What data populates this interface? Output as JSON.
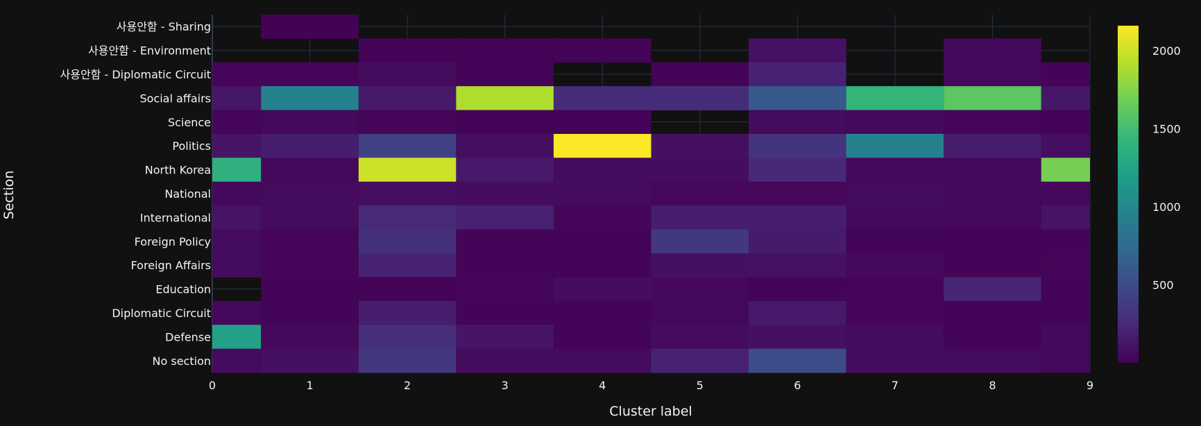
{
  "chart_data": {
    "type": "heatmap",
    "title": "",
    "xlabel": "Cluster label",
    "ylabel": "Section",
    "x_categories": [
      0,
      1,
      2,
      3,
      4,
      5,
      6,
      7,
      8,
      9
    ],
    "x_tick_labels": [
      "0",
      "1",
      "2",
      "3",
      "4",
      "5",
      "6",
      "7",
      "8",
      "9"
    ],
    "x_range": [
      0,
      9
    ],
    "y_categories": [
      "사용안함 - Sharing",
      "사용안함 - Environment",
      "사용안함 - Diplomatic Circuit",
      "Social affairs",
      "Science",
      "Politics",
      "North Korea",
      "National",
      "International",
      "Foreign Policy",
      "Foreign  Affairs",
      "Education",
      "Diplomatic Circuit",
      "Defense",
      "No section"
    ],
    "z": [
      [
        null,
        5,
        null,
        null,
        null,
        null,
        null,
        null,
        null,
        null
      ],
      [
        null,
        null,
        20,
        20,
        20,
        null,
        100,
        null,
        50,
        null
      ],
      [
        30,
        30,
        60,
        20,
        null,
        20,
        200,
        null,
        40,
        20
      ],
      [
        130,
        950,
        150,
        1900,
        270,
        270,
        600,
        1420,
        1600,
        130
      ],
      [
        30,
        40,
        30,
        20,
        20,
        null,
        60,
        50,
        30,
        20
      ],
      [
        120,
        170,
        420,
        80,
        2150,
        90,
        330,
        950,
        170,
        80
      ],
      [
        1370,
        50,
        2000,
        150,
        60,
        70,
        250,
        50,
        50,
        1700
      ],
      [
        50,
        60,
        80,
        70,
        60,
        40,
        40,
        60,
        50,
        40
      ],
      [
        110,
        60,
        260,
        200,
        30,
        170,
        180,
        50,
        40,
        110
      ],
      [
        60,
        30,
        300,
        20,
        20,
        350,
        160,
        20,
        20,
        20
      ],
      [
        60,
        30,
        210,
        20,
        20,
        90,
        100,
        40,
        20,
        30
      ],
      [
        null,
        20,
        10,
        30,
        70,
        40,
        20,
        30,
        220,
        20
      ],
      [
        50,
        20,
        170,
        20,
        20,
        50,
        150,
        30,
        20,
        20
      ],
      [
        1230,
        40,
        280,
        120,
        20,
        60,
        90,
        70,
        20,
        40
      ],
      [
        60,
        90,
        350,
        60,
        60,
        200,
        500,
        60,
        60,
        40
      ]
    ],
    "zmin": 0,
    "zmax": 2160,
    "colorscale": "Viridis",
    "colorbar": {
      "ticks": [
        500,
        1000,
        1500,
        2000
      ],
      "tick_labels": [
        "500",
        "1000",
        "1500",
        "2000"
      ]
    },
    "grid": true,
    "colors": {
      "background": "#111111",
      "grid": "#283442",
      "text": "#f2f5fa"
    }
  }
}
